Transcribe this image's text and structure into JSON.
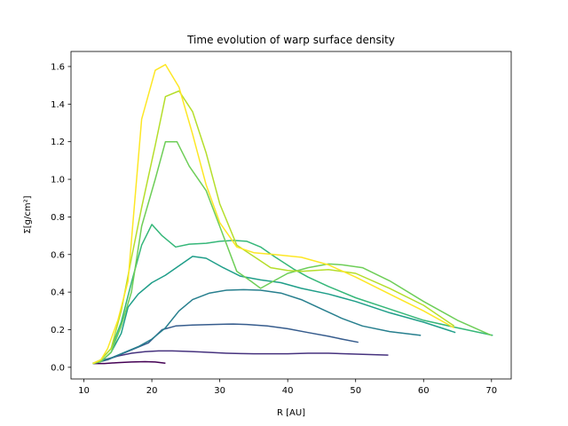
{
  "chart_data": {
    "type": "line",
    "title": "Time evolution of warp surface density",
    "xlabel": "R [AU]",
    "ylabel": "Σ[g/cm²]",
    "xlim": [
      8.1,
      72.9
    ],
    "ylim": [
      -0.062,
      1.68
    ],
    "xticks": [
      10,
      20,
      30,
      40,
      50,
      60,
      70
    ],
    "yticks": [
      0.0,
      0.2,
      0.4,
      0.6,
      0.8,
      1.0,
      1.2,
      1.4,
      1.6
    ],
    "xtick_labels": [
      "10",
      "20",
      "30",
      "40",
      "50",
      "60",
      "70"
    ],
    "ytick_labels": [
      "0.0",
      "0.2",
      "0.4",
      "0.6",
      "0.8",
      "1.0",
      "1.2",
      "1.4",
      "1.6"
    ],
    "grid": false,
    "legend": "none",
    "series": [
      {
        "color": "#440154",
        "points": [
          [
            11.3,
            0.02
          ],
          [
            13.0,
            0.02
          ],
          [
            15.0,
            0.025
          ],
          [
            17.0,
            0.028
          ],
          [
            19.0,
            0.03
          ],
          [
            20.5,
            0.028
          ],
          [
            22.0,
            0.022
          ]
        ]
      },
      {
        "color": "#46327e",
        "points": [
          [
            11.3,
            0.02
          ],
          [
            13.0,
            0.04
          ],
          [
            15.0,
            0.06
          ],
          [
            17.0,
            0.075
          ],
          [
            19.0,
            0.083
          ],
          [
            21.0,
            0.087
          ],
          [
            23.0,
            0.087
          ],
          [
            25.0,
            0.085
          ],
          [
            27.0,
            0.082
          ],
          [
            29.0,
            0.078
          ],
          [
            31.0,
            0.075
          ],
          [
            33.0,
            0.073
          ],
          [
            35.0,
            0.072
          ],
          [
            37.0,
            0.072
          ],
          [
            40.0,
            0.072
          ],
          [
            43.0,
            0.075
          ],
          [
            46.0,
            0.075
          ],
          [
            50.0,
            0.07
          ],
          [
            54.8,
            0.065
          ]
        ]
      },
      {
        "color": "#365c8d",
        "points": [
          [
            11.3,
            0.02
          ],
          [
            13.5,
            0.04
          ],
          [
            15.5,
            0.07
          ],
          [
            17.5,
            0.1
          ],
          [
            19.5,
            0.13
          ],
          [
            21.5,
            0.2
          ],
          [
            23.5,
            0.22
          ],
          [
            26.0,
            0.225
          ],
          [
            29.0,
            0.228
          ],
          [
            32.0,
            0.23
          ],
          [
            34.0,
            0.228
          ],
          [
            37.0,
            0.22
          ],
          [
            40.0,
            0.205
          ],
          [
            43.0,
            0.185
          ],
          [
            46.0,
            0.165
          ],
          [
            48.0,
            0.15
          ],
          [
            50.4,
            0.133
          ]
        ]
      },
      {
        "color": "#277f8e",
        "points": [
          [
            11.3,
            0.02
          ],
          [
            14.0,
            0.05
          ],
          [
            16.0,
            0.08
          ],
          [
            18.0,
            0.11
          ],
          [
            20.0,
            0.15
          ],
          [
            22.0,
            0.21
          ],
          [
            24.0,
            0.3
          ],
          [
            26.0,
            0.36
          ],
          [
            28.5,
            0.395
          ],
          [
            31.0,
            0.41
          ],
          [
            33.5,
            0.413
          ],
          [
            36.0,
            0.41
          ],
          [
            39.0,
            0.395
          ],
          [
            42.0,
            0.36
          ],
          [
            45.0,
            0.31
          ],
          [
            48.0,
            0.26
          ],
          [
            51.0,
            0.22
          ],
          [
            55.0,
            0.19
          ],
          [
            59.6,
            0.17
          ]
        ]
      },
      {
        "color": "#1f9e89",
        "points": [
          [
            11.3,
            0.02
          ],
          [
            12.5,
            0.03
          ],
          [
            14.0,
            0.08
          ],
          [
            15.5,
            0.18
          ],
          [
            16.5,
            0.32
          ],
          [
            18.0,
            0.39
          ],
          [
            20.0,
            0.45
          ],
          [
            22.0,
            0.49
          ],
          [
            24.0,
            0.54
          ],
          [
            26.0,
            0.59
          ],
          [
            28.0,
            0.58
          ],
          [
            30.5,
            0.53
          ],
          [
            33.0,
            0.485
          ],
          [
            36.0,
            0.465
          ],
          [
            39.0,
            0.45
          ],
          [
            42.0,
            0.42
          ],
          [
            46.0,
            0.39
          ],
          [
            50.0,
            0.35
          ],
          [
            55.0,
            0.29
          ],
          [
            60.0,
            0.24
          ],
          [
            64.7,
            0.185
          ]
        ]
      },
      {
        "color": "#35b779",
        "points": [
          [
            11.3,
            0.02
          ],
          [
            12.5,
            0.04
          ],
          [
            14.0,
            0.1
          ],
          [
            15.5,
            0.24
          ],
          [
            17.0,
            0.45
          ],
          [
            18.5,
            0.65
          ],
          [
            20.0,
            0.76
          ],
          [
            21.5,
            0.7
          ],
          [
            23.5,
            0.64
          ],
          [
            25.5,
            0.655
          ],
          [
            28.0,
            0.66
          ],
          [
            30.0,
            0.67
          ],
          [
            32.0,
            0.675
          ],
          [
            34.0,
            0.67
          ],
          [
            36.0,
            0.64
          ],
          [
            38.0,
            0.59
          ],
          [
            41.0,
            0.52
          ],
          [
            43.0,
            0.48
          ],
          [
            46.0,
            0.43
          ],
          [
            50.0,
            0.37
          ],
          [
            55.0,
            0.31
          ],
          [
            60.0,
            0.25
          ],
          [
            65.0,
            0.21
          ],
          [
            70.2,
            0.17
          ]
        ]
      },
      {
        "color": "#6ece58",
        "points": [
          [
            11.3,
            0.02
          ],
          [
            12.5,
            0.03
          ],
          [
            14.0,
            0.08
          ],
          [
            15.5,
            0.22
          ],
          [
            17.0,
            0.4
          ],
          [
            18.5,
            0.75
          ],
          [
            20.5,
            1.0
          ],
          [
            22.0,
            1.2
          ],
          [
            23.7,
            1.2
          ],
          [
            25.5,
            1.07
          ],
          [
            28.0,
            0.94
          ],
          [
            30.0,
            0.75
          ],
          [
            32.5,
            0.51
          ],
          [
            34.5,
            0.46
          ],
          [
            36.0,
            0.42
          ],
          [
            38.0,
            0.46
          ],
          [
            40.0,
            0.5
          ],
          [
            43.0,
            0.53
          ],
          [
            46.0,
            0.55
          ],
          [
            48.0,
            0.545
          ],
          [
            51.0,
            0.53
          ],
          [
            55.0,
            0.46
          ],
          [
            60.0,
            0.35
          ],
          [
            65.0,
            0.25
          ],
          [
            70.0,
            0.17
          ]
        ]
      },
      {
        "color": "#b5de2b",
        "points": [
          [
            11.3,
            0.02
          ],
          [
            12.5,
            0.04
          ],
          [
            14.0,
            0.1
          ],
          [
            15.5,
            0.3
          ],
          [
            17.0,
            0.58
          ],
          [
            18.5,
            0.85
          ],
          [
            20.5,
            1.18
          ],
          [
            22.0,
            1.44
          ],
          [
            24.0,
            1.47
          ],
          [
            26.0,
            1.36
          ],
          [
            28.0,
            1.14
          ],
          [
            30.0,
            0.87
          ],
          [
            32.5,
            0.65
          ],
          [
            35.0,
            0.59
          ],
          [
            37.5,
            0.53
          ],
          [
            40.0,
            0.515
          ],
          [
            42.0,
            0.51
          ],
          [
            46.0,
            0.52
          ],
          [
            50.0,
            0.5
          ],
          [
            55.0,
            0.42
          ],
          [
            60.0,
            0.33
          ],
          [
            64.5,
            0.22
          ]
        ]
      },
      {
        "color": "#fde725",
        "points": [
          [
            11.3,
            0.02
          ],
          [
            12.5,
            0.04
          ],
          [
            13.5,
            0.1
          ],
          [
            15.0,
            0.25
          ],
          [
            16.5,
            0.46
          ],
          [
            18.5,
            1.32
          ],
          [
            20.5,
            1.58
          ],
          [
            22.0,
            1.61
          ],
          [
            24.0,
            1.49
          ],
          [
            26.0,
            1.24
          ],
          [
            28.0,
            0.97
          ],
          [
            30.0,
            0.77
          ],
          [
            32.5,
            0.64
          ],
          [
            35.0,
            0.61
          ],
          [
            38.0,
            0.6
          ],
          [
            42.0,
            0.585
          ],
          [
            46.0,
            0.545
          ],
          [
            50.0,
            0.48
          ],
          [
            55.0,
            0.39
          ],
          [
            60.0,
            0.3
          ],
          [
            64.5,
            0.21
          ]
        ]
      }
    ]
  }
}
